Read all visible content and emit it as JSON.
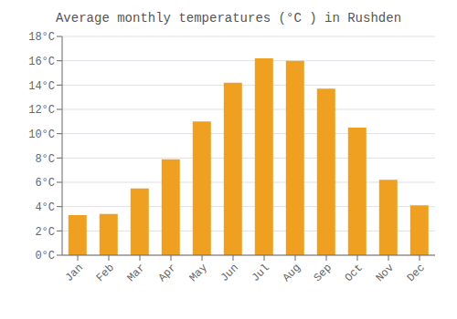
{
  "chart_data": {
    "type": "bar",
    "title": "Average monthly temperatures (°C ) in Rushden",
    "categories": [
      "Jan",
      "Feb",
      "Mar",
      "Apr",
      "May",
      "Jun",
      "Jul",
      "Aug",
      "Sep",
      "Oct",
      "Nov",
      "Dec"
    ],
    "values": [
      3.3,
      3.4,
      5.5,
      7.9,
      11.0,
      14.2,
      16.2,
      16.0,
      13.7,
      10.5,
      6.2,
      4.1
    ],
    "color": "#F0A020",
    "ylim": [
      0,
      18
    ],
    "yticks": [
      {
        "value": 0,
        "label": "0°C"
      },
      {
        "value": 2,
        "label": "2°C"
      },
      {
        "value": 4,
        "label": "4°C"
      },
      {
        "value": 6,
        "label": "6°C"
      },
      {
        "value": 8,
        "label": "8°C"
      },
      {
        "value": 10,
        "label": "10°C"
      },
      {
        "value": 12,
        "label": "12°C"
      },
      {
        "value": 14,
        "label": "14°C"
      },
      {
        "value": 16,
        "label": "16°C"
      },
      {
        "value": 18,
        "label": "18°C"
      }
    ],
    "grid": true
  }
}
